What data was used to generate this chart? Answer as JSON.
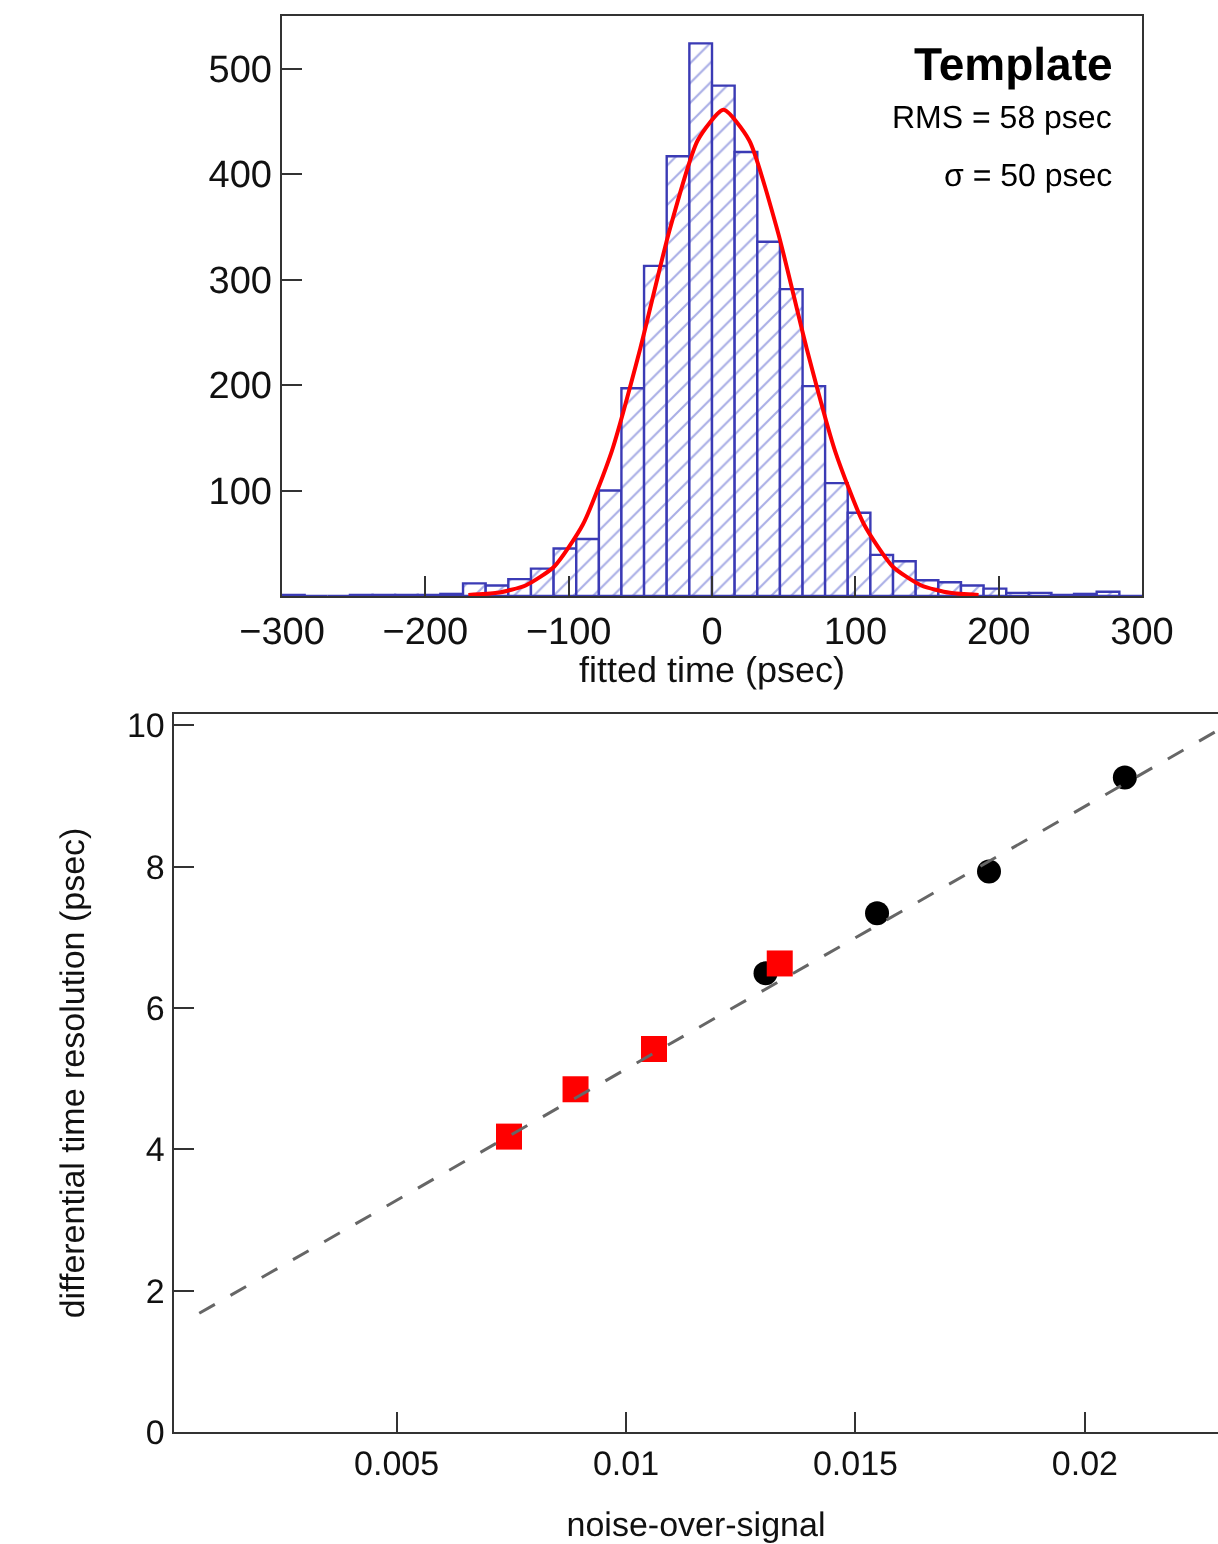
{
  "chart_data": [
    {
      "type": "histogram",
      "xlabel": "fitted time (psec)",
      "color": "#3b3bb5",
      "bins": [
        -300,
        -284.2,
        -268.4,
        -252.6,
        -236.8,
        -221.1,
        -205.3,
        -189.5,
        -173.7,
        -157.9,
        -142.1,
        -126.3,
        -110.5,
        -94.7,
        -78.9,
        -63.2,
        -47.4,
        -31.6,
        -15.8,
        0,
        15.8,
        31.6,
        47.4,
        63.2,
        78.9,
        94.7,
        110.5,
        126.3,
        142.1,
        157.9,
        173.7,
        189.5,
        205.3,
        221.1,
        236.8,
        252.6,
        268.4,
        284.2,
        300
      ],
      "values": [
        1,
        0,
        0,
        1,
        1,
        1,
        1,
        2,
        12,
        10,
        16,
        26,
        45,
        54,
        100,
        197,
        313,
        417,
        524,
        484,
        421,
        336,
        291,
        199,
        107,
        79,
        39,
        33,
        15,
        13,
        10,
        7,
        3,
        3,
        1,
        2,
        4,
        0
      ],
      "series": [
        {
          "type": "line",
          "color": "#ff0000",
          "x": [
            -170,
            -150,
            -130,
            -110,
            -90,
            -70,
            -50,
            -30,
            -10,
            8,
            26,
            46,
            66,
            86,
            106,
            126,
            146,
            166,
            186
          ],
          "values": [
            1,
            3,
            10,
            28,
            68,
            137,
            235,
            345,
            432,
            461,
            432,
            345,
            235,
            137,
            68,
            28,
            10,
            3,
            1
          ]
        }
      ],
      "xlim": [
        -300,
        300
      ],
      "ylim": [
        0,
        550
      ],
      "xticks": [
        {
          "value": -300,
          "label": "−300"
        },
        {
          "value": -200,
          "label": "−200"
        },
        {
          "value": -100,
          "label": "−100"
        },
        0,
        100,
        200,
        300
      ],
      "yticks": [
        100,
        200,
        300,
        400,
        500
      ],
      "annotations": [
        "Template",
        "RMS = 58 psec",
        "σ = 50 psec"
      ],
      "grid": false
    },
    {
      "type": "scatter",
      "xlabel": "noise-over-signal",
      "ylabel": "differential time resolution (psec)",
      "series": [
        {
          "color": "#000000",
          "marker": "circle",
          "x": [
            0.01304,
            0.01547,
            0.01791,
            0.02087
          ],
          "values": [
            6.49,
            7.34,
            7.93,
            9.26
          ]
        },
        {
          "color": "#ff0000",
          "marker": "square",
          "x": [
            0.00745,
            0.0089,
            0.01061,
            0.01335
          ],
          "values": [
            4.18,
            4.85,
            5.42,
            6.63
          ]
        },
        {
          "type": "line",
          "color": "#666666",
          "line_style": "dashed",
          "marker": "none",
          "x": [
            0.0007,
            0.0229
          ],
          "values": [
            1.68,
            9.93
          ]
        }
      ],
      "xlim": [
        0.00015,
        0.0229
      ],
      "ylim": [
        0,
        10.16
      ],
      "xticks": [
        0.005,
        0.01,
        0.015,
        0.02
      ],
      "yticks": [
        0,
        2,
        4,
        6,
        8,
        10
      ],
      "grid": false
    }
  ]
}
